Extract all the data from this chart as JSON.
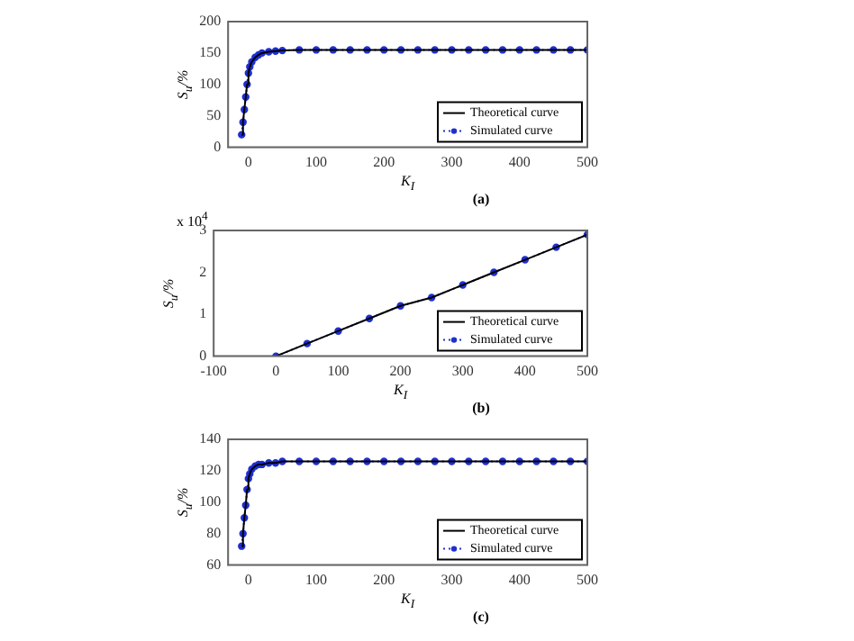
{
  "chart_data": [
    {
      "type": "line",
      "xlabel": "K$_{I}$",
      "ylabel": "S$_{u}$/%",
      "annotations": [
        "(a)"
      ],
      "xlim": [
        -30,
        500
      ],
      "xticks": [
        0,
        100,
        200,
        300,
        400,
        500
      ],
      "ylim": [
        0,
        200
      ],
      "yticks": [
        0,
        50,
        100,
        150,
        200
      ],
      "grid": false,
      "legend": "bottom right",
      "x": [
        -10,
        -8,
        -6,
        -4,
        -2,
        0,
        2,
        5,
        10,
        15,
        20,
        30,
        40,
        50,
        75,
        100,
        125,
        150,
        175,
        200,
        225,
        250,
        275,
        300,
        325,
        350,
        375,
        400,
        425,
        450,
        475,
        500
      ],
      "series": [
        {
          "name": "Theoretical curve",
          "color": "#000000",
          "marker": "none",
          "line_style": "solid",
          "values": [
            20,
            40,
            60,
            80,
            100,
            118,
            128,
            136,
            143,
            147,
            150,
            152,
            153,
            154,
            155,
            155,
            155,
            155,
            155,
            155,
            155,
            155,
            155,
            155,
            155,
            155,
            155,
            155,
            155,
            155,
            155,
            155
          ]
        },
        {
          "name": "Simulated curve",
          "color": "#1f2fd0",
          "marker": "circle",
          "line_style": "dotted",
          "values": [
            20,
            40,
            60,
            80,
            100,
            118,
            128,
            136,
            143,
            147,
            150,
            152,
            153,
            154,
            155,
            155,
            155,
            155,
            155,
            155,
            155,
            155,
            155,
            155,
            155,
            155,
            155,
            155,
            155,
            155,
            155,
            155
          ]
        }
      ]
    },
    {
      "type": "line",
      "xlabel": "K$_{I}$",
      "ylabel": "S$_{u}$/%",
      "annotations": [
        "x 10$^{4}$",
        "(b)"
      ],
      "xlim": [
        -100,
        500
      ],
      "xticks": [
        -100,
        0,
        100,
        200,
        300,
        400,
        500
      ],
      "ylim": [
        0,
        3
      ],
      "yticks": [
        0,
        1,
        2,
        3
      ],
      "grid": false,
      "legend": "bottom right",
      "x": [
        0,
        50,
        100,
        150,
        200,
        250,
        300,
        350,
        400,
        450,
        500
      ],
      "series": [
        {
          "name": "Theoretical curve",
          "color": "#000000",
          "marker": "none",
          "line_style": "solid",
          "values": [
            0,
            0.3,
            0.6,
            0.9,
            1.2,
            1.4,
            1.7,
            2.0,
            2.3,
            2.6,
            2.9
          ]
        },
        {
          "name": "Simulated curve",
          "color": "#1f2fd0",
          "marker": "circle",
          "line_style": "dotted",
          "values": [
            0,
            0.3,
            0.6,
            0.9,
            1.2,
            1.4,
            1.7,
            2.0,
            2.3,
            2.6,
            2.9
          ]
        }
      ]
    },
    {
      "type": "line",
      "xlabel": "K$_{I}$",
      "ylabel": "S$_{u}$/%",
      "annotations": [
        "(c)"
      ],
      "xlim": [
        -30,
        500
      ],
      "xticks": [
        0,
        100,
        200,
        300,
        400,
        500
      ],
      "ylim": [
        60,
        140
      ],
      "yticks": [
        60,
        80,
        100,
        120,
        140
      ],
      "grid": false,
      "legend": "bottom right",
      "x": [
        -10,
        -8,
        -6,
        -4,
        -2,
        0,
        2,
        5,
        10,
        15,
        20,
        30,
        40,
        50,
        75,
        100,
        125,
        150,
        175,
        200,
        225,
        250,
        275,
        300,
        325,
        350,
        375,
        400,
        425,
        450,
        475,
        500
      ],
      "series": [
        {
          "name": "Theoretical curve",
          "color": "#000000",
          "marker": "none",
          "line_style": "solid",
          "values": [
            72,
            80,
            90,
            98,
            108,
            115,
            118,
            121,
            123,
            124,
            124,
            125,
            125,
            126,
            126,
            126,
            126,
            126,
            126,
            126,
            126,
            126,
            126,
            126,
            126,
            126,
            126,
            126,
            126,
            126,
            126,
            126
          ]
        },
        {
          "name": "Simulated curve",
          "color": "#1f2fd0",
          "marker": "circle",
          "line_style": "dotted",
          "values": [
            72,
            80,
            90,
            98,
            108,
            115,
            118,
            121,
            123,
            124,
            124,
            125,
            125,
            126,
            126,
            126,
            126,
            126,
            126,
            126,
            126,
            126,
            126,
            126,
            126,
            126,
            126,
            126,
            126,
            126,
            126,
            126
          ]
        }
      ]
    }
  ]
}
